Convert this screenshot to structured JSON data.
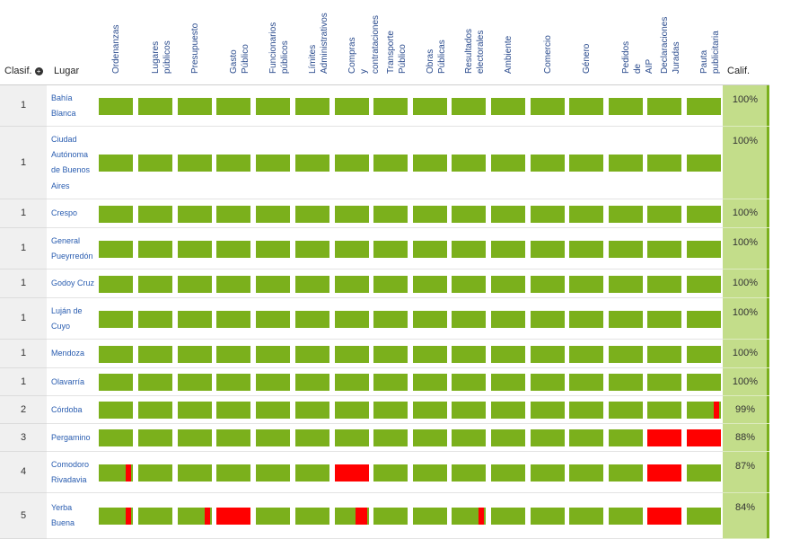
{
  "header": {
    "clasif_label": "Clasif.",
    "clasif_icon": "sort-icon",
    "lugar_label": "Lugar",
    "calif_label": "Calif."
  },
  "colors": {
    "green": "#7bb01c",
    "red": "#ff0000",
    "score_bg": "#c3dd8a",
    "link": "#2a5db0"
  },
  "chart_data": {
    "type": "table",
    "columns": [
      [
        "Ordenanzas"
      ],
      [
        "Lugares",
        "públicos"
      ],
      [
        "Presupuesto"
      ],
      [
        "Gasto",
        "Público"
      ],
      [
        "Funcionarios",
        "públicos"
      ],
      [
        "Límites",
        "Administrativos"
      ],
      [
        "Compras",
        "y",
        "contrataciones"
      ],
      [
        "Transporte",
        "Público"
      ],
      [
        "Obras",
        "Públicas"
      ],
      [
        "Resultados",
        "electorales"
      ],
      [
        "Ambiente"
      ],
      [
        "Comercio"
      ],
      [
        "Género"
      ],
      [
        "Pedidos",
        "de",
        "AIP"
      ],
      [
        "Declaraciones",
        "Juradas"
      ],
      [
        "Pauta",
        "publicitaria"
      ]
    ],
    "rows": [
      {
        "rank": "1",
        "place": [
          "Bahía",
          "Blanca"
        ],
        "score": "100%",
        "red": [
          0,
          0,
          0,
          0,
          0,
          0,
          0,
          0,
          0,
          0,
          0,
          0,
          0,
          0,
          0,
          0
        ]
      },
      {
        "rank": "1",
        "place": [
          "Ciudad",
          "Autónoma",
          "de Buenos",
          "Aires"
        ],
        "score": "100%",
        "red": [
          0,
          0,
          0,
          0,
          0,
          0,
          0,
          0,
          0,
          0,
          0,
          0,
          0,
          0,
          0,
          0
        ]
      },
      {
        "rank": "1",
        "place": [
          "Crespo"
        ],
        "score": "100%",
        "red": [
          0,
          0,
          0,
          0,
          0,
          0,
          0,
          0,
          0,
          0,
          0,
          0,
          0,
          0,
          0,
          0
        ]
      },
      {
        "rank": "1",
        "place": [
          "General",
          "Pueyrredón"
        ],
        "score": "100%",
        "red": [
          0,
          0,
          0,
          0,
          0,
          0,
          0,
          0,
          0,
          0,
          0,
          0,
          0,
          0,
          0,
          0
        ]
      },
      {
        "rank": "1",
        "place": [
          "Godoy Cruz"
        ],
        "score": "100%",
        "red": [
          0,
          0,
          0,
          0,
          0,
          0,
          0,
          0,
          0,
          0,
          0,
          0,
          0,
          0,
          0,
          0
        ]
      },
      {
        "rank": "1",
        "place": [
          "Luján de",
          "Cuyo"
        ],
        "score": "100%",
        "red": [
          0,
          0,
          0,
          0,
          0,
          0,
          0,
          0,
          0,
          0,
          0,
          0,
          0,
          0,
          0,
          0
        ]
      },
      {
        "rank": "1",
        "place": [
          "Mendoza"
        ],
        "score": "100%",
        "red": [
          0,
          0,
          0,
          0,
          0,
          0,
          0,
          0,
          0,
          0,
          0,
          0,
          0,
          0,
          0,
          0
        ]
      },
      {
        "rank": "1",
        "place": [
          "Olavarría"
        ],
        "score": "100%",
        "red": [
          0,
          0,
          0,
          0,
          0,
          0,
          0,
          0,
          0,
          0,
          0,
          0,
          0,
          0,
          0,
          0
        ]
      },
      {
        "rank": "2",
        "place": [
          "Córdoba"
        ],
        "score": "99%",
        "red": [
          0,
          0,
          0,
          0,
          0,
          0,
          0,
          0,
          0,
          0,
          0,
          0,
          0,
          0,
          0,
          0.15
        ]
      },
      {
        "rank": "3",
        "place": [
          "Pergamino"
        ],
        "score": "88%",
        "red": [
          0,
          0,
          0,
          0,
          0,
          0,
          0,
          0,
          0,
          0,
          0,
          0,
          0,
          0,
          1,
          1
        ]
      },
      {
        "rank": "4",
        "place": [
          "Comodoro",
          "Rivadavia"
        ],
        "score": "87%",
        "red": [
          0.15,
          0,
          0,
          0,
          0,
          0,
          1,
          0,
          0,
          0,
          0,
          0,
          0,
          0,
          1,
          0
        ]
      },
      {
        "rank": "5",
        "place": [
          "Yerba",
          "Buena"
        ],
        "score": "84%",
        "red": [
          0.15,
          0,
          0.15,
          1,
          0,
          0,
          0.35,
          0,
          0,
          0.15,
          0,
          0,
          0,
          0,
          1,
          0
        ]
      }
    ]
  }
}
